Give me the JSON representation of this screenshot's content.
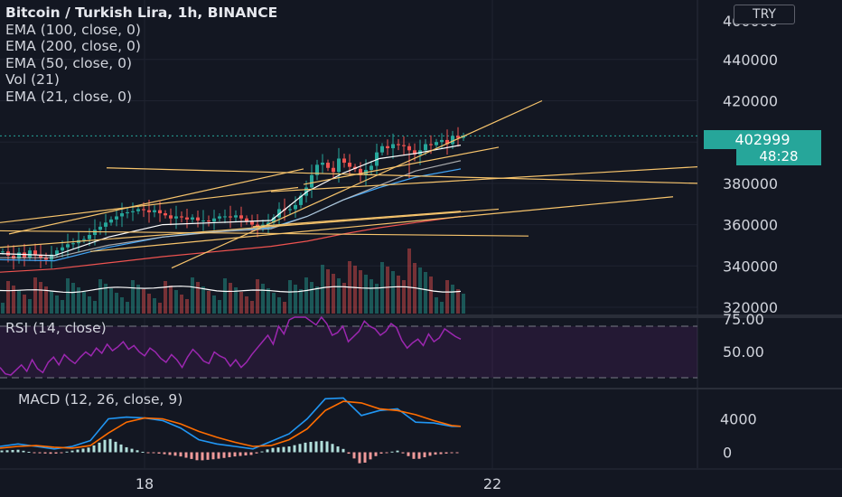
{
  "chart_title": "Bitcoin / Turkish Lira, 1h, BINANCE",
  "indicator_legend": [
    "EMA (100, close, 0)",
    "EMA (200, close, 0)",
    "EMA (50, close, 0)",
    "Vol (21)",
    "EMA (21, close, 0)"
  ],
  "currency_button": "TRY",
  "last_price_label": "402999",
  "countdown_label": "48:28",
  "rsi_label": "RSI (14, close)",
  "macd_label": "MACD (12, 26, close, 9)",
  "colors": {
    "background": "#131722",
    "up": "#26a69a",
    "down": "#ef5350",
    "ema21": "#ffffff",
    "ema50": "#42a5f5",
    "ema100": "#d0d0d0",
    "ema200": "#ef5350",
    "trendline": "#f7c46c",
    "rsi": "#9c27b0",
    "macd": "#2196f3",
    "signal": "#ff6d00"
  },
  "chart_data": [
    {
      "type": "candlestick",
      "title": "Bitcoin / Turkish Lira, 1h, BINANCE",
      "y_ticks": [
        440000,
        420000,
        400000,
        380000,
        360000,
        340000,
        320000
      ],
      "ylim": [
        319000,
        452000
      ],
      "x_ticks": [
        "18",
        "22"
      ],
      "last_price": 402999,
      "price_path": [
        [
          0,
          347000
        ],
        [
          6,
          345000
        ],
        [
          12,
          343500
        ],
        [
          18,
          346500
        ],
        [
          24,
          344000
        ],
        [
          30,
          347500
        ],
        [
          36,
          345500
        ],
        [
          42,
          344000
        ],
        [
          48,
          343000
        ],
        [
          54,
          345500
        ],
        [
          60,
          347500
        ],
        [
          66,
          349000
        ],
        [
          72,
          350500
        ],
        [
          78,
          351000
        ],
        [
          84,
          352500
        ],
        [
          90,
          353000
        ],
        [
          96,
          355000
        ],
        [
          102,
          357500
        ],
        [
          108,
          359000
        ],
        [
          114,
          361000
        ],
        [
          120,
          362500
        ],
        [
          126,
          364000
        ],
        [
          132,
          365500
        ],
        [
          138,
          366000
        ],
        [
          144,
          366500
        ],
        [
          150,
          367500
        ],
        [
          156,
          367000
        ],
        [
          162,
          366000
        ],
        [
          168,
          367000
        ],
        [
          174,
          365500
        ],
        [
          180,
          364500
        ],
        [
          186,
          363000
        ],
        [
          192,
          364000
        ],
        [
          198,
          363500
        ],
        [
          204,
          362500
        ],
        [
          210,
          363500
        ],
        [
          216,
          362000
        ],
        [
          222,
          362000
        ],
        [
          228,
          361500
        ],
        [
          234,
          363000
        ],
        [
          240,
          364000
        ],
        [
          246,
          364000
        ],
        [
          252,
          363500
        ],
        [
          258,
          364500
        ],
        [
          264,
          363000
        ],
        [
          270,
          361500
        ],
        [
          276,
          360000
        ],
        [
          282,
          359000
        ],
        [
          288,
          360000
        ],
        [
          294,
          361000
        ],
        [
          300,
          363500
        ],
        [
          306,
          367500
        ],
        [
          312,
          367000
        ],
        [
          318,
          367500
        ],
        [
          324,
          369500
        ],
        [
          330,
          374000
        ],
        [
          336,
          378000
        ],
        [
          342,
          384000
        ],
        [
          348,
          389000
        ],
        [
          354,
          390000
        ],
        [
          360,
          387500
        ],
        [
          366,
          385500
        ],
        [
          372,
          392000
        ],
        [
          378,
          390000
        ],
        [
          384,
          388000
        ],
        [
          390,
          387000
        ],
        [
          396,
          384000
        ],
        [
          402,
          386500
        ],
        [
          408,
          388500
        ],
        [
          414,
          395000
        ],
        [
          420,
          398000
        ],
        [
          426,
          397000
        ],
        [
          432,
          399000
        ],
        [
          438,
          398500
        ],
        [
          444,
          398000
        ],
        [
          450,
          396000
        ],
        [
          456,
          394000
        ],
        [
          462,
          396000
        ],
        [
          468,
          399000
        ],
        [
          474,
          398500
        ],
        [
          480,
          400000
        ],
        [
          486,
          401000
        ],
        [
          492,
          399000
        ],
        [
          498,
          403000
        ],
        [
          504,
          402000
        ],
        [
          510,
          403000
        ]
      ],
      "series": [
        {
          "name": "EMA (21, close, 0)",
          "points": [
            [
              0,
              346000
            ],
            [
              60,
              345000
            ],
            [
              120,
              354000
            ],
            [
              180,
              360000
            ],
            [
              240,
              361000
            ],
            [
              300,
              362000
            ],
            [
              340,
              376000
            ],
            [
              380,
              385000
            ],
            [
              420,
              392000
            ],
            [
              460,
              394500
            ],
            [
              510,
              398500
            ]
          ]
        },
        {
          "name": "EMA (50, close, 0)",
          "points": [
            [
              0,
              343000
            ],
            [
              60,
              342500
            ],
            [
              120,
              349000
            ],
            [
              180,
              354000
            ],
            [
              240,
              357000
            ],
            [
              300,
              358500
            ],
            [
              340,
              364000
            ],
            [
              380,
              372000
            ],
            [
              420,
              378000
            ],
            [
              460,
              383000
            ],
            [
              510,
              387000
            ]
          ]
        },
        {
          "name": "EMA (100, close, 0)",
          "points": [
            [
              0,
              344000
            ],
            [
              60,
              344000
            ],
            [
              120,
              350000
            ],
            [
              180,
              354000
            ],
            [
              240,
              356500
            ],
            [
              300,
              358000
            ],
            [
              340,
              364000
            ],
            [
              380,
              372000
            ],
            [
              420,
              379000
            ],
            [
              460,
              386000
            ],
            [
              510,
              391000
            ]
          ]
        },
        {
          "name": "EMA (200, close, 0)",
          "points": [
            [
              0,
              337000
            ],
            [
              60,
              338500
            ],
            [
              120,
              341500
            ],
            [
              180,
              344500
            ],
            [
              240,
              347000
            ],
            [
              300,
              349500
            ],
            [
              340,
              352000
            ],
            [
              380,
              355500
            ],
            [
              420,
              358500
            ],
            [
              460,
              361000
            ],
            [
              510,
              364000
            ]
          ]
        }
      ],
      "trendlines": [
        [
          [
            0,
            361000
          ],
          [
            330,
            378000
          ]
        ],
        [
          [
            118,
            387500
          ],
          [
            772,
            380000
          ]
        ],
        [
          [
            190,
            339000
          ],
          [
            600,
            420000
          ]
        ],
        [
          [
            300,
            376000
          ],
          [
            772,
            388000
          ]
        ],
        [
          [
            336,
            379500
          ],
          [
            552,
            397500
          ]
        ],
        [
          [
            0,
            349000
          ],
          [
            552,
            367500
          ]
        ],
        [
          [
            100,
            347000
          ],
          [
            745,
            373500
          ]
        ],
        [
          [
            0,
            357000
          ],
          [
            585,
            354500
          ]
        ],
        [
          [
            280,
            359000
          ],
          [
            510,
            366500
          ]
        ],
        [
          [
            10,
            355500
          ],
          [
            336,
            387000
          ]
        ]
      ]
    },
    {
      "type": "line",
      "title": "RSI (14, close)",
      "y_ticks": [
        75,
        50
      ],
      "ylim": [
        24,
        80
      ],
      "band": [
        30,
        70
      ],
      "values": [
        38,
        33,
        32,
        36,
        40,
        35,
        44,
        37,
        34,
        42,
        46,
        40,
        48,
        44,
        41,
        46,
        50,
        47,
        53,
        49,
        56,
        51,
        54,
        58,
        52,
        55,
        50,
        47,
        53,
        50,
        45,
        42,
        48,
        44,
        38,
        46,
        52,
        48,
        43,
        41,
        50,
        47,
        45,
        39,
        44,
        38,
        42,
        48,
        53,
        58,
        63,
        56,
        70,
        64,
        75,
        80,
        85,
        82,
        74,
        71,
        78,
        72,
        63,
        65,
        70,
        58,
        62,
        66,
        74,
        70,
        68,
        63,
        66,
        72,
        69,
        59,
        53,
        57,
        60,
        55,
        64,
        58,
        61,
        68,
        65,
        62,
        60
      ]
    },
    {
      "type": "macd",
      "title": "MACD (12, 26, close, 9)",
      "y_ticks": [
        4000,
        0
      ],
      "ylim": [
        -2500,
        7500
      ],
      "macd": [
        [
          0,
          700
        ],
        [
          20,
          1000
        ],
        [
          40,
          700
        ],
        [
          60,
          400
        ],
        [
          80,
          700
        ],
        [
          100,
          1400
        ],
        [
          120,
          4000
        ],
        [
          140,
          4200
        ],
        [
          160,
          4100
        ],
        [
          180,
          3800
        ],
        [
          200,
          2900
        ],
        [
          220,
          1500
        ],
        [
          240,
          1000
        ],
        [
          260,
          700
        ],
        [
          280,
          400
        ],
        [
          300,
          1300
        ],
        [
          320,
          2200
        ],
        [
          340,
          4000
        ],
        [
          360,
          6400
        ],
        [
          380,
          6500
        ],
        [
          400,
          4400
        ],
        [
          420,
          5000
        ],
        [
          440,
          5200
        ],
        [
          460,
          3600
        ],
        [
          480,
          3500
        ],
        [
          500,
          3100
        ],
        [
          510,
          3100
        ]
      ],
      "signal": [
        [
          0,
          500
        ],
        [
          20,
          700
        ],
        [
          40,
          800
        ],
        [
          60,
          600
        ],
        [
          80,
          500
        ],
        [
          100,
          800
        ],
        [
          120,
          2300
        ],
        [
          140,
          3600
        ],
        [
          160,
          4100
        ],
        [
          180,
          4000
        ],
        [
          200,
          3400
        ],
        [
          220,
          2500
        ],
        [
          240,
          1800
        ],
        [
          260,
          1200
        ],
        [
          280,
          700
        ],
        [
          300,
          800
        ],
        [
          320,
          1500
        ],
        [
          340,
          2800
        ],
        [
          360,
          5000
        ],
        [
          380,
          6100
        ],
        [
          400,
          5900
        ],
        [
          420,
          5200
        ],
        [
          440,
          5000
        ],
        [
          460,
          4500
        ],
        [
          480,
          3800
        ],
        [
          500,
          3200
        ],
        [
          510,
          3100
        ]
      ]
    }
  ]
}
